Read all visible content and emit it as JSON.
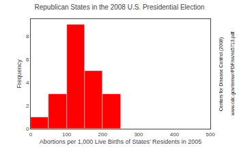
{
  "chart_data": {
    "type": "histogram",
    "title": "Republican States in the 2008 U.S. Presidential Election",
    "xlabel": "Abortions per 1,000 Live Births of States' Residents in 2005",
    "ylabel": "Frequency",
    "annotations": [
      "Centers for Disease Control (2008)",
      "www.cdc.gov/mmwr/PDF/ss/ss5713.pdf"
    ],
    "bins": [
      0,
      50,
      100,
      150,
      200,
      250
    ],
    "values": [
      1,
      3,
      9,
      5,
      3
    ],
    "color": "#ff0000",
    "xlim": [
      0,
      500
    ],
    "ylim": [
      0,
      9.5
    ],
    "xticks": [
      0,
      100,
      200,
      300,
      400,
      500
    ],
    "yticks": [
      0,
      2,
      4,
      6,
      8
    ],
    "grid": false
  }
}
